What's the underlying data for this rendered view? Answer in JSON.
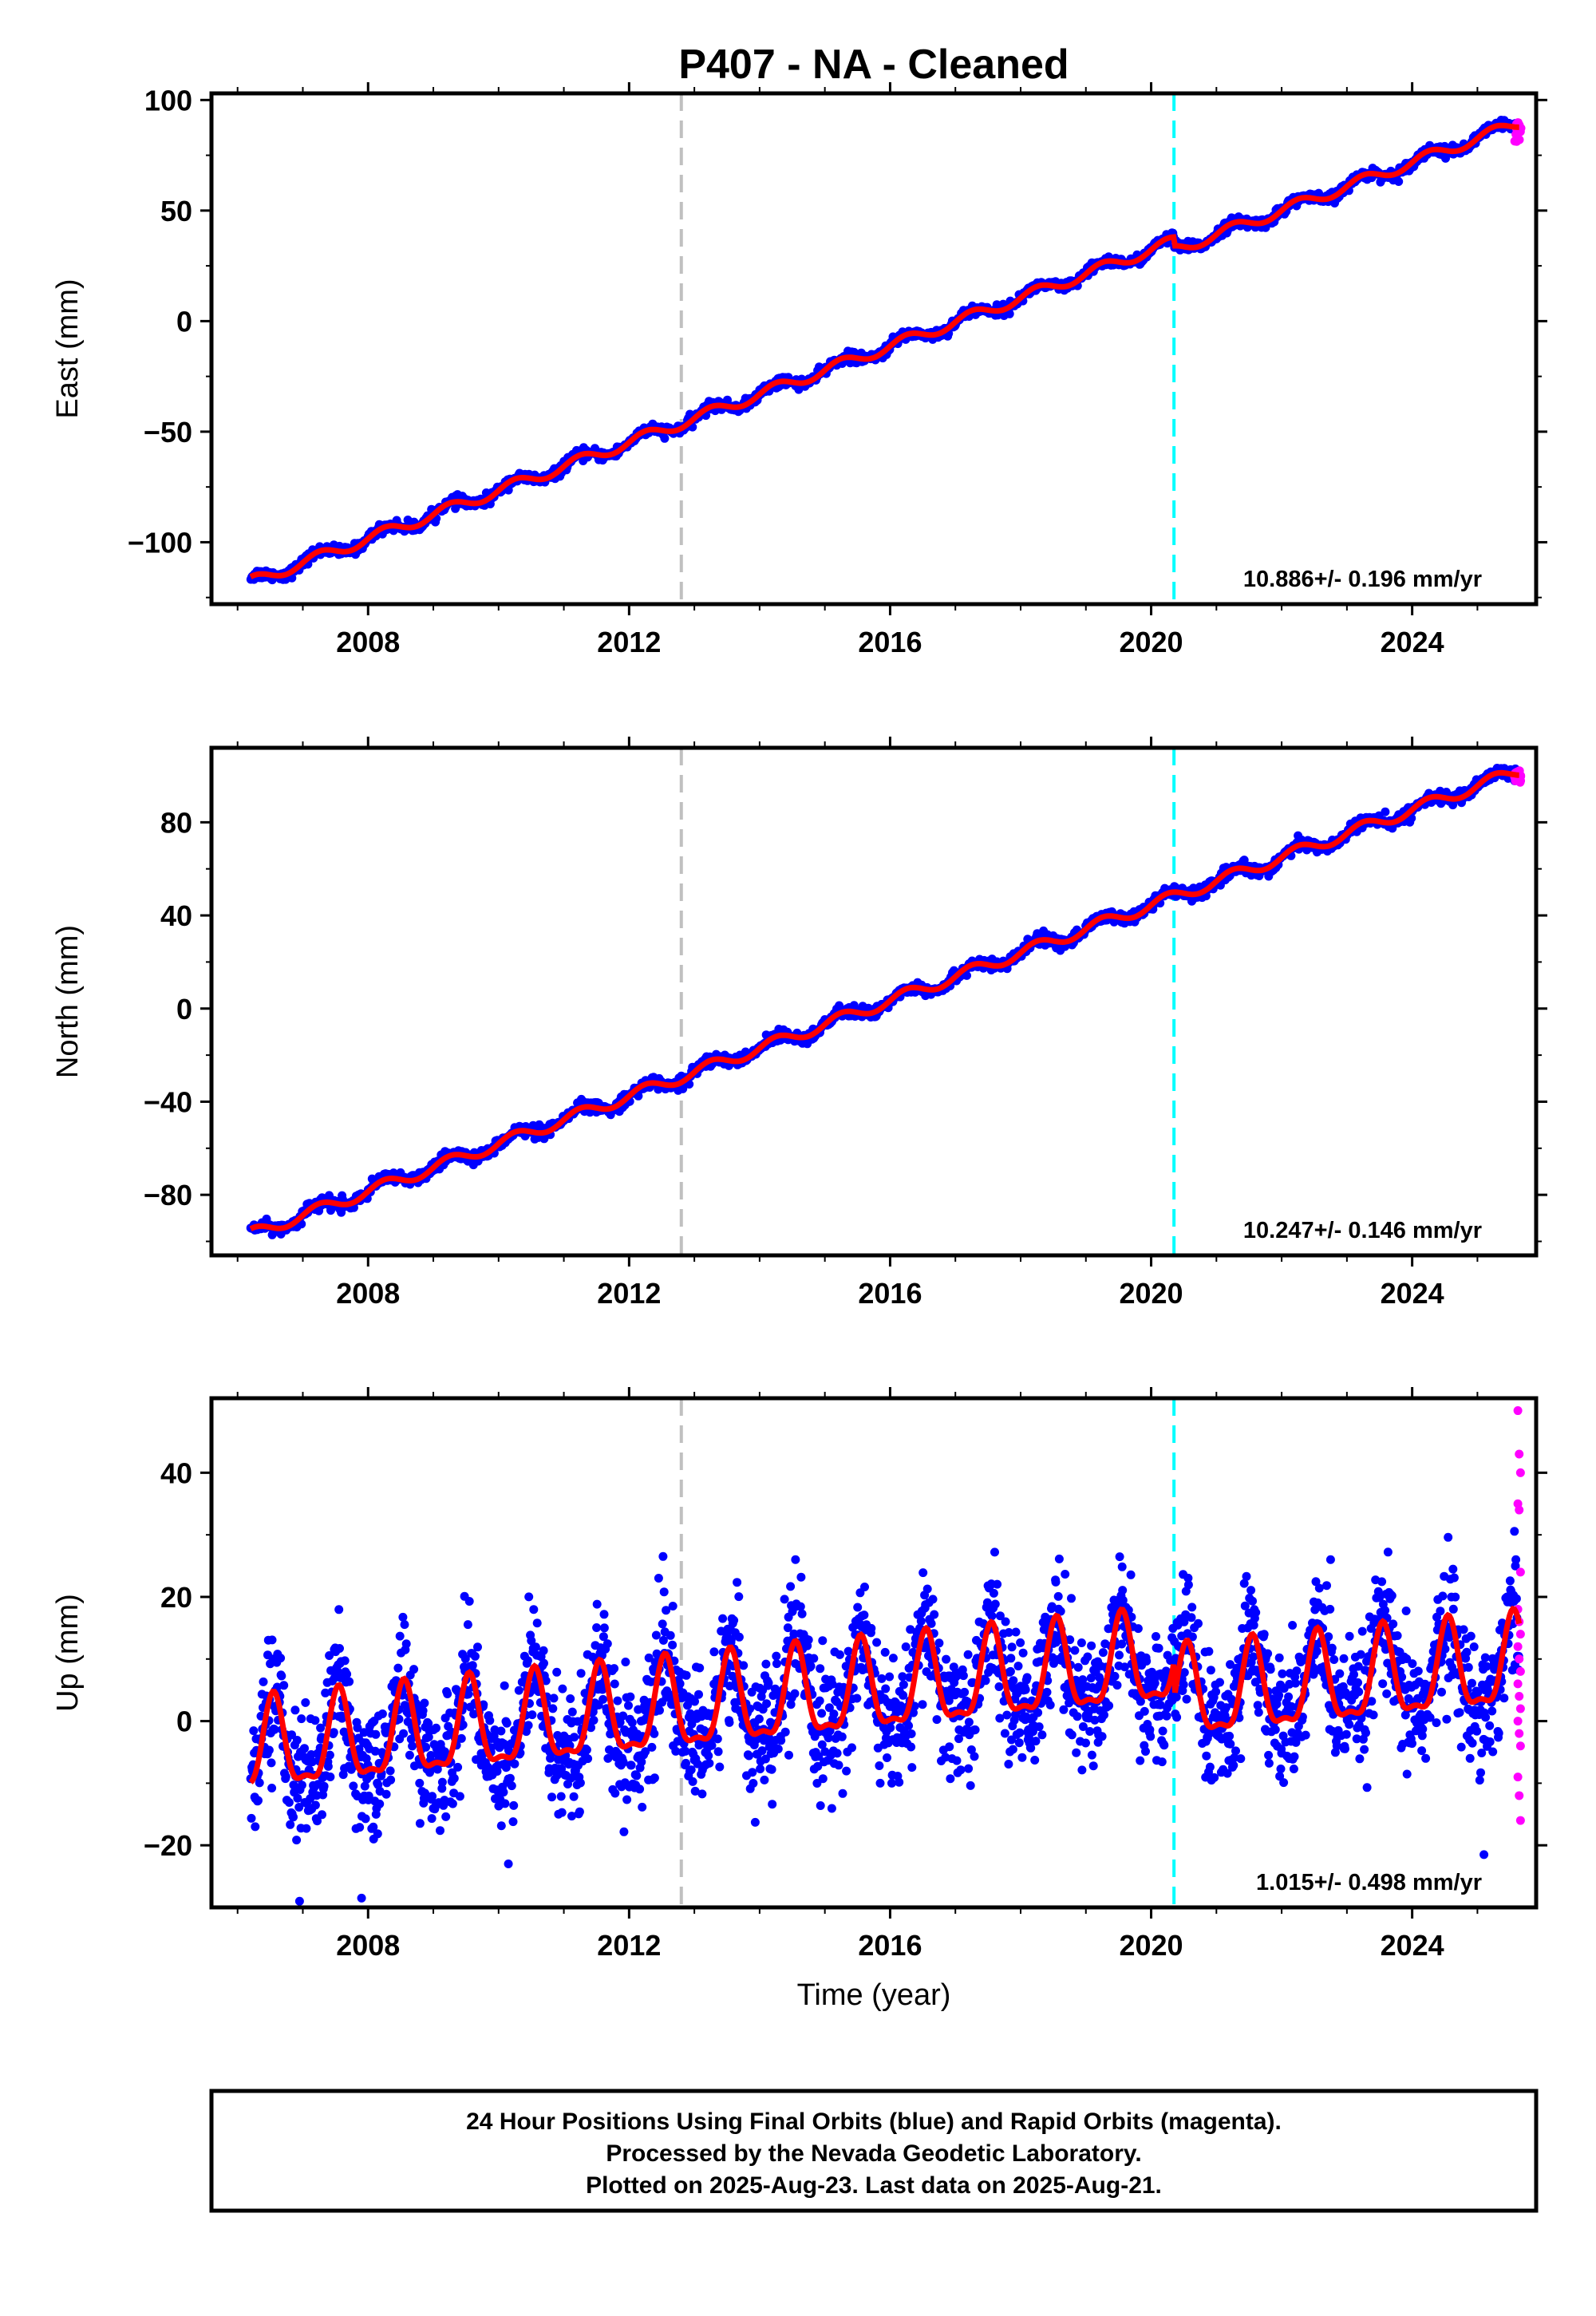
{
  "title": "P407  - NA - Cleaned",
  "xlabel": "Time (year)",
  "colors": {
    "final": "#0000ff",
    "rapid": "#ff00ff",
    "model": "#ff0000",
    "event_gray": "#c0c0c0",
    "event_cyan": "#00ffff",
    "frame": "#000000"
  },
  "footer": {
    "line1": "24 Hour Positions Using Final Orbits (blue) and Rapid Orbits (magenta).",
    "line2": "Processed by the Nevada Geodetic Laboratory.",
    "line3": "Plotted on 2025-Aug-23. Last data on 2025-Aug-21."
  },
  "chart_data": [
    {
      "type": "scatter",
      "component": "east",
      "ylabel": "East (mm)",
      "xlim": [
        2005.6,
        2025.9
      ],
      "ylim": [
        -128,
        103
      ],
      "xticks": [
        2008,
        2012,
        2016,
        2020,
        2024
      ],
      "yticks": [
        -100,
        -50,
        0,
        50,
        100
      ],
      "rate_label": "10.886+/- 0.196 mm/yr",
      "rate_mm_per_yr": 10.886,
      "rate_sigma": 0.196,
      "data_start": 2006.2,
      "data_end": 2025.64,
      "y_start": -118,
      "step_at_2020_3": -4,
      "seasonal_amplitude": 2.5,
      "scatter_sigma": 1.2,
      "event_lines": [
        2012.8,
        2020.35
      ],
      "rapid_tail_spread": 7,
      "legend": "none",
      "grid": false
    },
    {
      "type": "scatter",
      "component": "north",
      "ylabel": "North (mm)",
      "xlim": [
        2005.6,
        2025.9
      ],
      "ylim": [
        -106,
        112
      ],
      "xticks": [
        2008,
        2012,
        2016,
        2020,
        2024
      ],
      "yticks": [
        -80,
        -40,
        0,
        40,
        80
      ],
      "rate_label": "10.247+/- 0.146 mm/yr",
      "rate_mm_per_yr": 10.247,
      "rate_sigma": 0.146,
      "data_start": 2006.2,
      "data_end": 2025.64,
      "y_start": -97,
      "step_at_2020_3": 0,
      "seasonal_amplitude": 2.5,
      "scatter_sigma": 1.3,
      "event_lines": [
        2012.8,
        2020.35
      ],
      "rapid_tail_spread": 4,
      "legend": "none",
      "grid": false
    },
    {
      "type": "scatter",
      "component": "up",
      "ylabel": "Up (mm)",
      "xlim": [
        2005.6,
        2025.9
      ],
      "ylim": [
        -30,
        52
      ],
      "xticks": [
        2008,
        2012,
        2016,
        2020,
        2024
      ],
      "yticks": [
        -20,
        0,
        20,
        40
      ],
      "rate_label": "1.015+/- 0.498 mm/yr",
      "rate_mm_per_yr": 1.015,
      "rate_sigma": 0.498,
      "data_start": 2006.2,
      "data_end": 2025.64,
      "y_start": -5,
      "step_at_2020_3": -6,
      "seasonal_amplitude": 7,
      "scatter_sigma": 5,
      "event_lines": [
        2012.8,
        2020.35
      ],
      "rapid_points": [
        50,
        43,
        40,
        35,
        34,
        24,
        18,
        16,
        14,
        12,
        10,
        8,
        6,
        4,
        2,
        0,
        -2,
        -4,
        -9,
        -12,
        -16
      ],
      "outliers": [
        [
          2006.95,
          -29
        ],
        [
          2007.9,
          -28.5
        ],
        [
          2010.15,
          -23
        ],
        [
          2014.55,
          26
        ],
        [
          2022.75,
          26
        ],
        [
          2025.1,
          -21.5
        ]
      ],
      "legend": "none",
      "grid": false
    }
  ]
}
